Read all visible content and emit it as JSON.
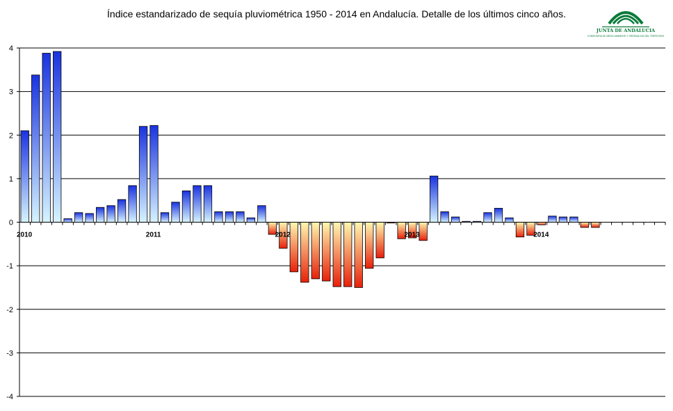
{
  "title": "Índice estandarizado de sequía pluviométrica 1950 - 2014 en Andalucía. Detalle de los últimos cinco años.",
  "logo": {
    "name": "JUNTA DE ANDALUCIA",
    "subtitle": "CONSEJERIA DE MEDIO AMBIENTE Y ORDENACION DEL TERRITORIO",
    "color": "#0a7a3a"
  },
  "chart_data": {
    "type": "bar",
    "ylim": [
      -4,
      4
    ],
    "yticks": [
      "4",
      "3",
      "2",
      "1",
      "0",
      "-1",
      "-2",
      "-3",
      "-4"
    ],
    "year_labels": [
      {
        "label": "2010",
        "index": 0
      },
      {
        "label": "2011",
        "index": 12
      },
      {
        "label": "2012",
        "index": 24
      },
      {
        "label": "2013",
        "index": 36
      },
      {
        "label": "2014",
        "index": 48
      }
    ],
    "values": [
      2.1,
      3.38,
      3.88,
      3.92,
      0.08,
      0.22,
      0.2,
      0.34,
      0.38,
      0.52,
      0.84,
      2.2,
      2.22,
      0.22,
      0.46,
      0.72,
      0.84,
      0.84,
      0.24,
      0.24,
      0.24,
      0.1,
      0.38,
      -0.28,
      -0.6,
      -1.14,
      -1.38,
      -1.3,
      -1.35,
      -1.48,
      -1.48,
      -1.5,
      -1.06,
      -0.82,
      -0.02,
      -0.38,
      -0.36,
      -0.42,
      1.06,
      0.24,
      0.12,
      0.02,
      0.02,
      0.22,
      0.32,
      0.1,
      -0.34,
      -0.3,
      -0.06,
      0.14,
      0.12,
      0.12,
      -0.12,
      -0.12,
      0,
      0,
      0,
      0,
      0,
      0
    ],
    "total_slots": 60,
    "grid": true,
    "positive_colors": [
      "#1a33e0",
      "#d6f4ff"
    ],
    "negative_colors": [
      "#fff8b0",
      "#e8200a"
    ]
  }
}
